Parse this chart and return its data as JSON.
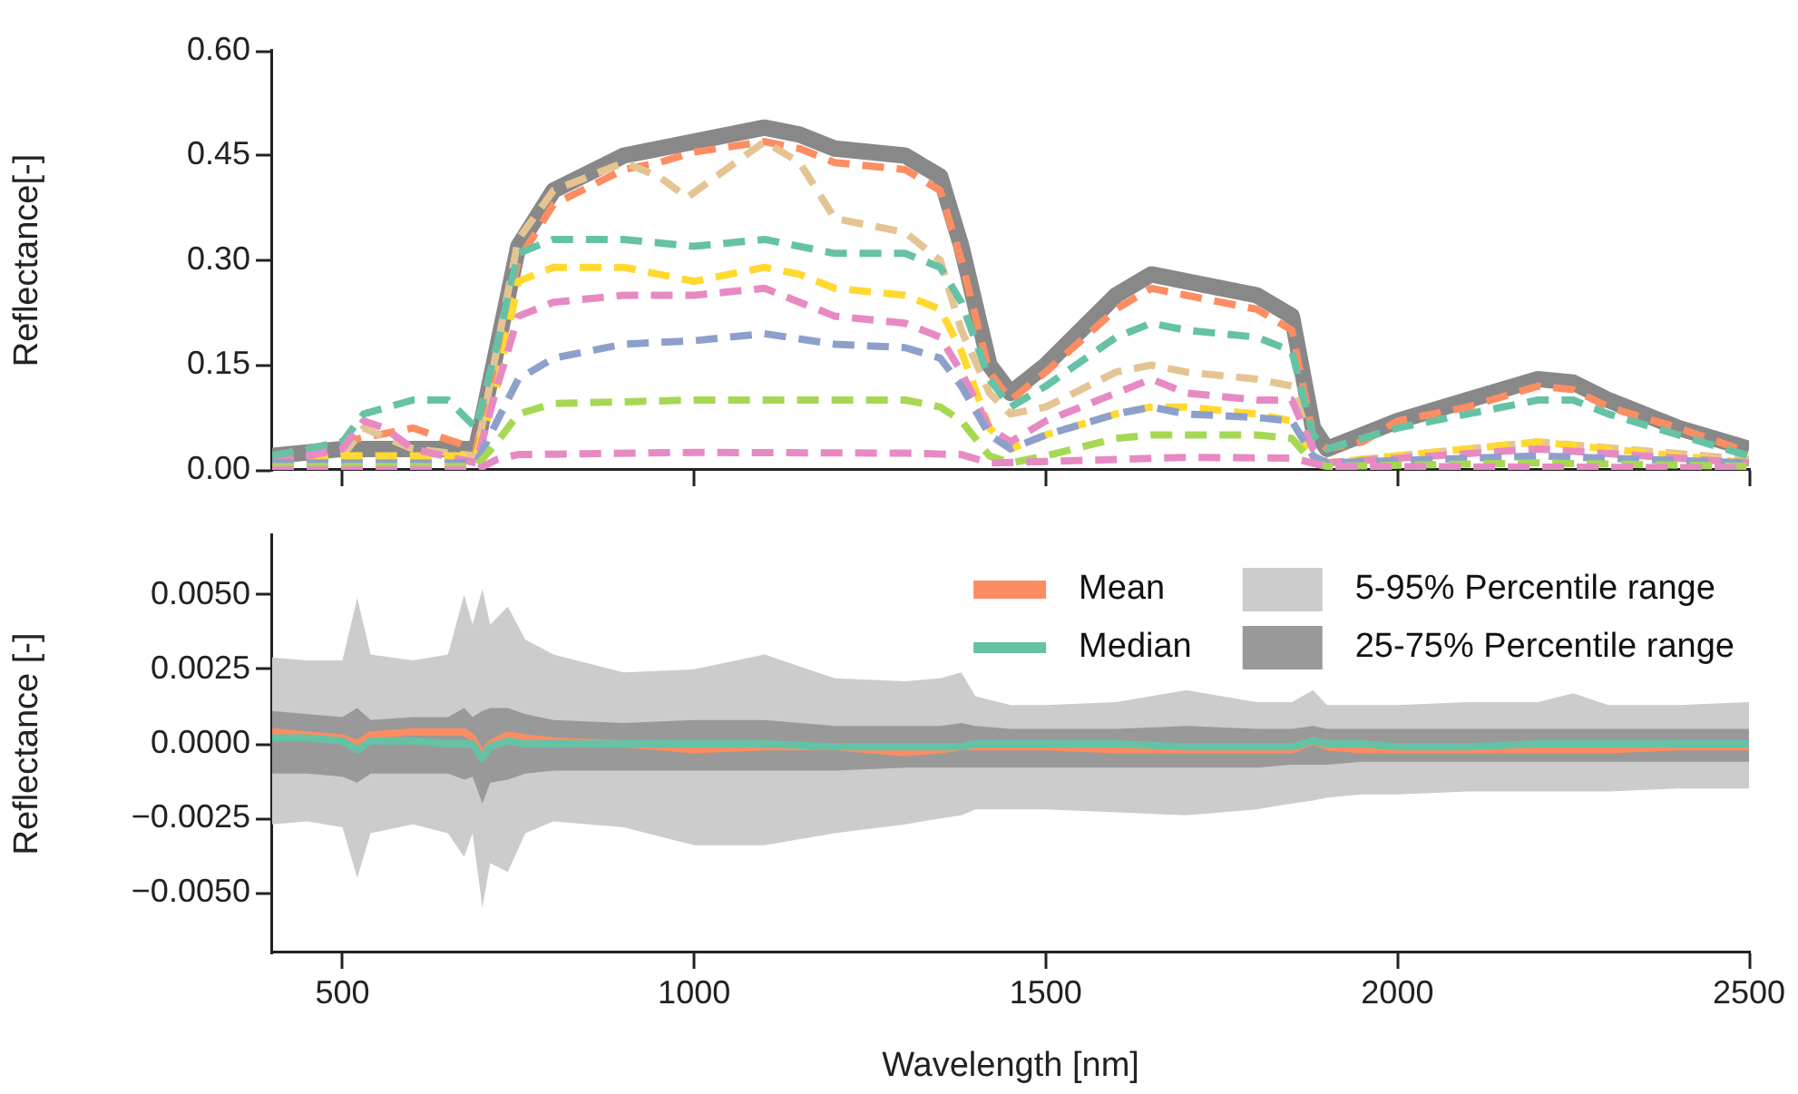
{
  "chart_data": [
    {
      "type": "line",
      "ylabel": "Reflectance[-]",
      "xlim": [
        400,
        2500
      ],
      "xticks": [
        500,
        1000,
        1500,
        2000,
        2500
      ],
      "ylim": [
        0,
        0.6
      ],
      "yticks": [
        {
          "value": 0,
          "label": "0.00"
        },
        {
          "value": 0.15,
          "label": "0.15"
        },
        {
          "value": 0.3,
          "label": "0.30"
        },
        {
          "value": 0.45,
          "label": "0.45"
        },
        {
          "value": 0.6,
          "label": "0.60"
        }
      ],
      "tick_labels": "y",
      "grid": false,
      "legend": false,
      "line_style": "dashed",
      "series": [
        {
          "color": "#888888",
          "line_style": "solid",
          "x": [
            400,
            500,
            600,
            690,
            750,
            800,
            900,
            950,
            1000,
            1100,
            1150,
            1200,
            1300,
            1350,
            1380,
            1420,
            1450,
            1500,
            1600,
            1650,
            1700,
            1800,
            1850,
            1880,
            1900,
            2000,
            2100,
            2200,
            2250,
            2300,
            2400,
            2500
          ],
          "values": [
            0.02,
            0.03,
            0.03,
            0.03,
            0.32,
            0.4,
            0.45,
            0.46,
            0.47,
            0.49,
            0.48,
            0.46,
            0.45,
            0.42,
            0.32,
            0.15,
            0.11,
            0.15,
            0.25,
            0.28,
            0.27,
            0.25,
            0.22,
            0.06,
            0.03,
            0.07,
            0.1,
            0.13,
            0.125,
            0.1,
            0.06,
            0.03
          ]
        },
        {
          "color": "#fc8d62",
          "x": [
            400,
            500,
            600,
            690,
            750,
            800,
            900,
            950,
            1000,
            1100,
            1150,
            1200,
            1300,
            1350,
            1380,
            1420,
            1450,
            1500,
            1600,
            1650,
            1700,
            1800,
            1850,
            1880,
            1900,
            1950,
            2000,
            2100,
            2200,
            2250,
            2300,
            2400,
            2500
          ],
          "values": [
            0.02,
            0.04,
            0.06,
            0.03,
            0.3,
            0.38,
            0.43,
            0.44,
            0.455,
            0.47,
            0.46,
            0.44,
            0.43,
            0.4,
            0.3,
            0.14,
            0.1,
            0.14,
            0.23,
            0.26,
            0.25,
            0.23,
            0.2,
            0.05,
            0.03,
            0.04,
            0.07,
            0.09,
            0.12,
            0.115,
            0.09,
            0.06,
            0.025
          ]
        },
        {
          "color": "#e5c494",
          "x": [
            400,
            500,
            530,
            600,
            690,
            750,
            800,
            900,
            950,
            990,
            1100,
            1150,
            1200,
            1300,
            1350,
            1380,
            1420,
            1450,
            1500,
            1600,
            1650,
            1700,
            1800,
            1850,
            1880,
            1900,
            2000,
            2200,
            2500
          ],
          "values": [
            0.01,
            0.02,
            0.06,
            0.03,
            0.02,
            0.33,
            0.4,
            0.44,
            0.42,
            0.39,
            0.47,
            0.44,
            0.36,
            0.34,
            0.3,
            0.2,
            0.11,
            0.08,
            0.09,
            0.14,
            0.15,
            0.14,
            0.13,
            0.12,
            0.03,
            0.01,
            0.02,
            0.04,
            0.015
          ]
        },
        {
          "color": "#66c2a5",
          "x": [
            400,
            500,
            530,
            600,
            650,
            690,
            720,
            750,
            800,
            900,
            1000,
            1100,
            1200,
            1300,
            1350,
            1380,
            1420,
            1450,
            1500,
            1600,
            1650,
            1700,
            1800,
            1850,
            1880,
            1900,
            2000,
            2100,
            2200,
            2250,
            2300,
            2400,
            2500
          ],
          "values": [
            0.02,
            0.04,
            0.08,
            0.1,
            0.1,
            0.06,
            0.18,
            0.31,
            0.33,
            0.33,
            0.32,
            0.33,
            0.31,
            0.31,
            0.29,
            0.24,
            0.13,
            0.09,
            0.12,
            0.19,
            0.21,
            0.2,
            0.19,
            0.17,
            0.05,
            0.03,
            0.06,
            0.08,
            0.1,
            0.1,
            0.08,
            0.05,
            0.02
          ]
        },
        {
          "color": "#ffd92f",
          "x": [
            400,
            500,
            600,
            690,
            720,
            750,
            800,
            900,
            950,
            1000,
            1100,
            1150,
            1200,
            1300,
            1350,
            1380,
            1420,
            1450,
            1500,
            1600,
            1650,
            1700,
            1800,
            1850,
            1880,
            1900,
            2000,
            2200,
            2500
          ],
          "values": [
            0.01,
            0.02,
            0.02,
            0.02,
            0.12,
            0.27,
            0.29,
            0.29,
            0.28,
            0.27,
            0.29,
            0.28,
            0.26,
            0.25,
            0.23,
            0.17,
            0.06,
            0.03,
            0.05,
            0.08,
            0.09,
            0.09,
            0.08,
            0.07,
            0.02,
            0.01,
            0.02,
            0.04,
            0.01
          ]
        },
        {
          "color": "#e78ac3",
          "x": [
            400,
            500,
            530,
            560,
            600,
            690,
            720,
            750,
            800,
            900,
            1000,
            1100,
            1200,
            1300,
            1350,
            1380,
            1420,
            1450,
            1500,
            1600,
            1650,
            1700,
            1800,
            1850,
            1880,
            1900,
            2200,
            2500
          ],
          "values": [
            0.01,
            0.03,
            0.07,
            0.06,
            0.03,
            0.01,
            0.12,
            0.22,
            0.24,
            0.25,
            0.25,
            0.26,
            0.22,
            0.21,
            0.19,
            0.14,
            0.06,
            0.04,
            0.07,
            0.11,
            0.13,
            0.11,
            0.1,
            0.1,
            0.03,
            0.01,
            0.03,
            0.01
          ]
        },
        {
          "color": "#8da0cb",
          "x": [
            400,
            500,
            600,
            690,
            720,
            750,
            800,
            900,
            1000,
            1100,
            1200,
            1300,
            1350,
            1380,
            1420,
            1450,
            1500,
            1600,
            1650,
            1700,
            1800,
            1850,
            1880,
            1900,
            2200,
            2500
          ],
          "values": [
            0.01,
            0.01,
            0.01,
            0.01,
            0.07,
            0.13,
            0.16,
            0.18,
            0.185,
            0.195,
            0.18,
            0.175,
            0.16,
            0.12,
            0.05,
            0.03,
            0.05,
            0.08,
            0.09,
            0.08,
            0.075,
            0.07,
            0.02,
            0.01,
            0.02,
            0.01
          ]
        },
        {
          "color": "#a6d854",
          "x": [
            400,
            690,
            720,
            750,
            800,
            1000,
            1100,
            1200,
            1300,
            1350,
            1380,
            1420,
            1450,
            1500,
            1600,
            1650,
            1700,
            1800,
            1850,
            1880,
            1900,
            2200,
            2500
          ],
          "values": [
            0.005,
            0.005,
            0.04,
            0.08,
            0.095,
            0.1,
            0.1,
            0.1,
            0.1,
            0.09,
            0.07,
            0.02,
            0.01,
            0.02,
            0.045,
            0.05,
            0.05,
            0.05,
            0.045,
            0.01,
            0.005,
            0.01,
            0.005
          ]
        },
        {
          "color": "#e78ac3",
          "x": [
            400,
            690,
            720,
            750,
            1000,
            1300,
            1380,
            1420,
            1500,
            1700,
            1850,
            1900,
            2500
          ],
          "values": [
            0,
            0,
            0.015,
            0.022,
            0.025,
            0.024,
            0.022,
            0.01,
            0.012,
            0.018,
            0.017,
            0.005,
            0.003
          ]
        }
      ]
    },
    {
      "type": "line",
      "xlabel": "Wavelength [nm]",
      "ylabel": "Reflectance [-]",
      "xlim": [
        400,
        2500
      ],
      "xticks": [
        500,
        1000,
        1500,
        2000,
        2500
      ],
      "ylim": [
        -0.007,
        0.007
      ],
      "yticks": [
        {
          "value": -0.005,
          "label": "−0.0050"
        },
        {
          "value": -0.0025,
          "label": "−0.0025"
        },
        {
          "value": 0,
          "label": "0.0000"
        },
        {
          "value": 0.0025,
          "label": "0.0025"
        },
        {
          "value": 0.005,
          "label": "0.0050"
        }
      ],
      "grid": false,
      "legend": "top right",
      "x": [
        400,
        450,
        500,
        521,
        540,
        600,
        650,
        673,
        685,
        699,
        710,
        735,
        760,
        800,
        900,
        1000,
        1100,
        1200,
        1300,
        1350,
        1380,
        1400,
        1450,
        1500,
        1600,
        1700,
        1800,
        1850,
        1880,
        1900,
        1950,
        2000,
        2100,
        2200,
        2250,
        2300,
        2400,
        2500
      ],
      "series": [
        {
          "name": "5-95% Percentile range",
          "color": "#cccccc",
          "values": [
            null,
            null,
            null,
            null,
            null,
            null,
            null,
            null,
            null,
            null,
            null,
            null,
            null,
            null,
            null,
            null,
            null,
            null,
            null,
            null,
            null,
            null,
            null,
            null,
            null,
            null,
            null,
            null,
            null,
            null,
            null,
            null,
            null,
            null,
            null,
            null,
            null,
            null
          ],
          "upper": [
            0.0029,
            0.0028,
            0.0028,
            0.0049,
            0.003,
            0.0028,
            0.003,
            0.005,
            0.004,
            0.0052,
            0.004,
            0.0046,
            0.0035,
            0.003,
            0.0024,
            0.0025,
            0.003,
            0.0022,
            0.0021,
            0.0022,
            0.0024,
            0.0016,
            0.0013,
            0.0013,
            0.0014,
            0.0018,
            0.0014,
            0.0014,
            0.0018,
            0.0013,
            0.0013,
            0.0013,
            0.0014,
            0.0014,
            0.0017,
            0.0013,
            0.0013,
            0.0014
          ],
          "lower": [
            -0.0027,
            -0.0026,
            -0.0028,
            -0.0045,
            -0.003,
            -0.0027,
            -0.003,
            -0.0038,
            -0.003,
            -0.0055,
            -0.004,
            -0.0043,
            -0.003,
            -0.0026,
            -0.0028,
            -0.0034,
            -0.0034,
            -0.003,
            -0.0027,
            -0.0025,
            -0.0024,
            -0.0022,
            -0.0022,
            -0.0022,
            -0.0023,
            -0.0024,
            -0.0022,
            -0.002,
            -0.0019,
            -0.0018,
            -0.0017,
            -0.0017,
            -0.0016,
            -0.0016,
            -0.0016,
            -0.0016,
            -0.0015,
            -0.0015
          ]
        },
        {
          "name": "25-75% Percentile range",
          "color": "#999999",
          "values": [
            null,
            null,
            null,
            null,
            null,
            null,
            null,
            null,
            null,
            null,
            null,
            null,
            null,
            null,
            null,
            null,
            null,
            null,
            null,
            null,
            null,
            null,
            null,
            null,
            null,
            null,
            null,
            null,
            null,
            null,
            null,
            null,
            null,
            null,
            null,
            null,
            null,
            null
          ],
          "upper": [
            0.0011,
            0.001,
            0.0009,
            0.0012,
            0.0008,
            0.0009,
            0.0009,
            0.0012,
            0.0009,
            0.0011,
            0.0012,
            0.0012,
            0.001,
            0.0008,
            0.0007,
            0.0008,
            0.0008,
            0.0006,
            0.0006,
            0.0006,
            0.0007,
            0.0006,
            0.0005,
            0.0005,
            0.0005,
            0.0006,
            0.0005,
            0.0005,
            0.0006,
            0.0005,
            0.0005,
            0.0005,
            0.0005,
            0.0005,
            0.0005,
            0.0005,
            0.0005,
            0.0005
          ],
          "lower": [
            -0.001,
            -0.001,
            -0.0011,
            -0.0013,
            -0.001,
            -0.001,
            -0.001,
            -0.0012,
            -0.0011,
            -0.002,
            -0.0013,
            -0.0012,
            -0.001,
            -0.0009,
            -0.0009,
            -0.0009,
            -0.0009,
            -0.0009,
            -0.0008,
            -0.0008,
            -0.0008,
            -0.0008,
            -0.0008,
            -0.0008,
            -0.0008,
            -0.0008,
            -0.0008,
            -0.0007,
            -0.0007,
            -0.0007,
            -0.0006,
            -0.0006,
            -0.0006,
            -0.0006,
            -0.0006,
            -0.0006,
            -0.0006,
            -0.0006
          ]
        },
        {
          "name": "Mean",
          "color": "#fc8d62",
          "line_style": "solid",
          "values": [
            0.0004,
            0.0003,
            0.0002,
            0,
            0.0003,
            0.0004,
            0.0004,
            0.0004,
            0.0002,
            -0.0004,
            0,
            0.0003,
            0.0002,
            0.0001,
            0,
            -0.0002,
            -0.0001,
            -0.0001,
            -0.0003,
            -0.0002,
            -0.0001,
            -0.0001,
            -0.0001,
            -0.0001,
            -0.0002,
            -0.0002,
            -0.0002,
            -0.0002,
            0.0001,
            -0.0001,
            -0.0002,
            -0.0002,
            -0.0002,
            -0.0002,
            -0.0002,
            -0.0002,
            -0.0001,
            -0.0001
          ]
        },
        {
          "name": "Median",
          "color": "#66c2a5",
          "line_style": "solid",
          "values": [
            0.0002,
            0.0002,
            0.0001,
            -0.0002,
            0.0001,
            0.0001,
            0,
            0,
            0,
            -0.0005,
            -0.0001,
            0.0001,
            0,
            0,
            0,
            0,
            0,
            -0.0001,
            -0.0001,
            -0.0001,
            -0.0001,
            0,
            0,
            0,
            0,
            -0.0001,
            -0.0001,
            -0.0001,
            0.0001,
            0,
            0,
            -0.0001,
            -0.0001,
            0,
            0,
            0,
            0,
            0
          ]
        }
      ]
    }
  ]
}
